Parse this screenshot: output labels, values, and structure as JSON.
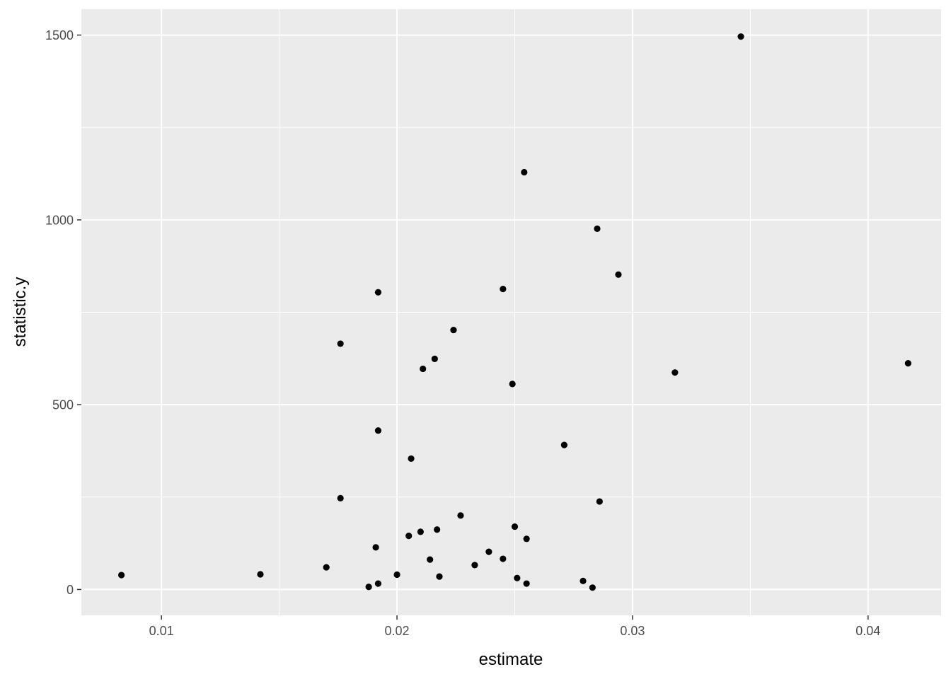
{
  "chart_data": {
    "type": "scatter",
    "title": "",
    "xlabel": "estimate",
    "ylabel": "statistic.y",
    "xlim": [
      0.0066,
      0.0431
    ],
    "ylim": [
      -70,
      1570
    ],
    "x_ticks": [
      0.01,
      0.02,
      0.03,
      0.04
    ],
    "x_tick_labels": [
      "0.01",
      "0.02",
      "0.03",
      "0.04"
    ],
    "y_ticks": [
      0,
      500,
      1000,
      1500
    ],
    "y_tick_labels": [
      "0",
      "500",
      "1000",
      "1500"
    ],
    "grid": true,
    "legend": "none",
    "colors": {
      "panel": "#ebebeb",
      "grid": "#ffffff",
      "point": "#000000",
      "tick": "#333333"
    },
    "points": [
      {
        "x": 0.0083,
        "y": 39
      },
      {
        "x": 0.0142,
        "y": 41
      },
      {
        "x": 0.017,
        "y": 60
      },
      {
        "x": 0.0176,
        "y": 665
      },
      {
        "x": 0.0176,
        "y": 247
      },
      {
        "x": 0.0188,
        "y": 7
      },
      {
        "x": 0.0191,
        "y": 114
      },
      {
        "x": 0.0192,
        "y": 804
      },
      {
        "x": 0.0192,
        "y": 430
      },
      {
        "x": 0.0192,
        "y": 16
      },
      {
        "x": 0.02,
        "y": 40
      },
      {
        "x": 0.0205,
        "y": 145
      },
      {
        "x": 0.0206,
        "y": 354
      },
      {
        "x": 0.021,
        "y": 156
      },
      {
        "x": 0.0211,
        "y": 597
      },
      {
        "x": 0.0214,
        "y": 81
      },
      {
        "x": 0.0216,
        "y": 624
      },
      {
        "x": 0.0217,
        "y": 162
      },
      {
        "x": 0.0218,
        "y": 35
      },
      {
        "x": 0.0224,
        "y": 702
      },
      {
        "x": 0.0227,
        "y": 200
      },
      {
        "x": 0.0233,
        "y": 66
      },
      {
        "x": 0.0239,
        "y": 102
      },
      {
        "x": 0.0245,
        "y": 813
      },
      {
        "x": 0.0245,
        "y": 83
      },
      {
        "x": 0.0249,
        "y": 556
      },
      {
        "x": 0.025,
        "y": 170
      },
      {
        "x": 0.0251,
        "y": 31
      },
      {
        "x": 0.0254,
        "y": 1129
      },
      {
        "x": 0.0255,
        "y": 137
      },
      {
        "x": 0.0255,
        "y": 16
      },
      {
        "x": 0.0271,
        "y": 391
      },
      {
        "x": 0.0279,
        "y": 23
      },
      {
        "x": 0.0283,
        "y": 5
      },
      {
        "x": 0.0285,
        "y": 976
      },
      {
        "x": 0.0286,
        "y": 238
      },
      {
        "x": 0.0294,
        "y": 852
      },
      {
        "x": 0.0318,
        "y": 587
      },
      {
        "x": 0.0346,
        "y": 1496
      },
      {
        "x": 0.0417,
        "y": 612
      }
    ]
  }
}
